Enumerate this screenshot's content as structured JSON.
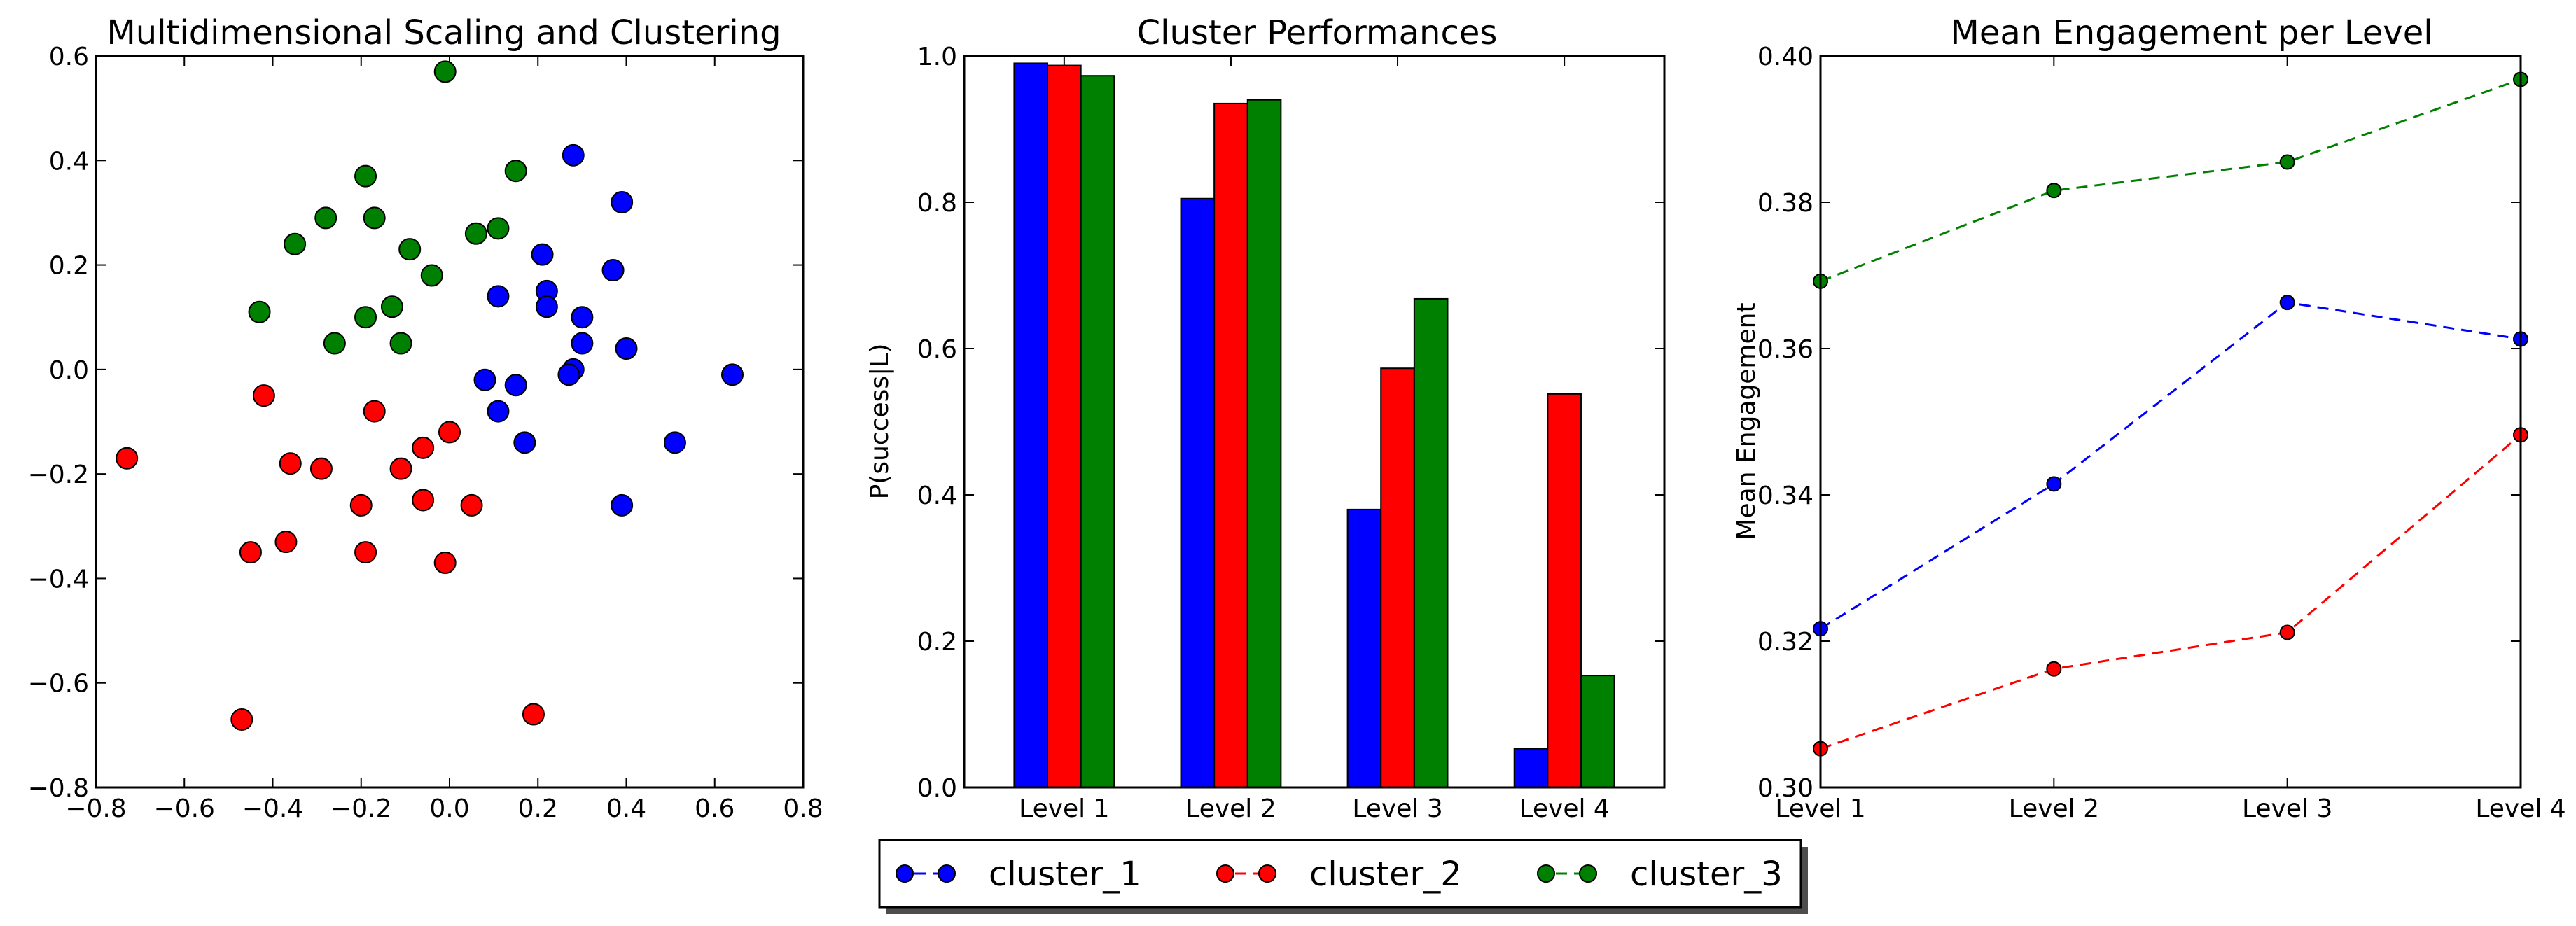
{
  "chart_data": [
    {
      "type": "scatter",
      "title": "Multidimensional Scaling and Clustering",
      "xlabel": "",
      "ylabel": "",
      "xlim": [
        -0.8,
        0.8
      ],
      "ylim": [
        -0.8,
        0.6
      ],
      "xticks": [
        -0.8,
        -0.6,
        -0.4,
        -0.2,
        0.0,
        0.2,
        0.4,
        0.6,
        0.8
      ],
      "yticks": [
        -0.8,
        -0.6,
        -0.4,
        -0.2,
        0.0,
        0.2,
        0.4,
        0.6
      ],
      "xticklabels": [
        "−0.8",
        "−0.6",
        "−0.4",
        "−0.2",
        "0.0",
        "0.2",
        "0.4",
        "0.6",
        "0.8"
      ],
      "yticklabels": [
        "−0.8",
        "−0.6",
        "−0.4",
        "−0.2",
        "0.0",
        "0.2",
        "0.4",
        "0.6"
      ],
      "series": [
        {
          "name": "cluster_1",
          "color": "#0000ff",
          "points": [
            [
              0.28,
              0.41
            ],
            [
              0.39,
              0.32
            ],
            [
              0.37,
              0.19
            ],
            [
              0.21,
              0.22
            ],
            [
              0.22,
              0.15
            ],
            [
              0.11,
              0.14
            ],
            [
              0.22,
              0.12
            ],
            [
              0.3,
              0.1
            ],
            [
              0.3,
              0.05
            ],
            [
              0.4,
              0.04
            ],
            [
              0.28,
              0.0
            ],
            [
              0.27,
              -0.01
            ],
            [
              0.64,
              -0.01
            ],
            [
              0.08,
              -0.02
            ],
            [
              0.15,
              -0.03
            ],
            [
              0.11,
              -0.08
            ],
            [
              0.17,
              -0.14
            ],
            [
              0.51,
              -0.14
            ],
            [
              0.39,
              -0.26
            ]
          ]
        },
        {
          "name": "cluster_2",
          "color": "#ff0000",
          "points": [
            [
              -0.42,
              -0.05
            ],
            [
              -0.17,
              -0.08
            ],
            [
              -0.73,
              -0.17
            ],
            [
              -0.36,
              -0.18
            ],
            [
              -0.29,
              -0.19
            ],
            [
              -0.11,
              -0.19
            ],
            [
              -0.06,
              -0.15
            ],
            [
              0.0,
              -0.12
            ],
            [
              -0.2,
              -0.26
            ],
            [
              -0.06,
              -0.25
            ],
            [
              0.05,
              -0.26
            ],
            [
              -0.37,
              -0.33
            ],
            [
              -0.45,
              -0.35
            ],
            [
              -0.19,
              -0.35
            ],
            [
              -0.01,
              -0.37
            ],
            [
              -0.47,
              -0.67
            ],
            [
              0.19,
              -0.66
            ]
          ]
        },
        {
          "name": "cluster_3",
          "color": "#008000",
          "points": [
            [
              -0.01,
              0.57
            ],
            [
              -0.19,
              0.37
            ],
            [
              0.15,
              0.38
            ],
            [
              -0.28,
              0.29
            ],
            [
              -0.17,
              0.29
            ],
            [
              0.11,
              0.27
            ],
            [
              0.06,
              0.26
            ],
            [
              -0.35,
              0.24
            ],
            [
              -0.09,
              0.23
            ],
            [
              -0.04,
              0.18
            ],
            [
              -0.13,
              0.12
            ],
            [
              -0.43,
              0.11
            ],
            [
              -0.19,
              0.1
            ],
            [
              -0.26,
              0.05
            ],
            [
              -0.11,
              0.05
            ]
          ]
        }
      ]
    },
    {
      "type": "bar",
      "title": "Cluster Performances",
      "xlabel": "",
      "ylabel": "P(success|L)",
      "ylim": [
        0.0,
        1.0
      ],
      "yticks": [
        0.0,
        0.2,
        0.4,
        0.6,
        0.8,
        1.0
      ],
      "yticklabels": [
        "0.0",
        "0.2",
        "0.4",
        "0.6",
        "0.8",
        "1.0"
      ],
      "categories": [
        "Level 1",
        "Level 2",
        "Level 3",
        "Level 4"
      ],
      "series": [
        {
          "name": "cluster_1",
          "color": "#0000ff",
          "values": [
            0.99,
            0.805,
            0.38,
            0.053
          ]
        },
        {
          "name": "cluster_2",
          "color": "#ff0000",
          "values": [
            0.987,
            0.935,
            0.573,
            0.538
          ]
        },
        {
          "name": "cluster_3",
          "color": "#008000",
          "values": [
            0.973,
            0.94,
            0.668,
            0.153
          ]
        }
      ]
    },
    {
      "type": "line",
      "title": "Mean Engagement per Level",
      "xlabel": "",
      "ylabel": "Mean Engagement",
      "ylim": [
        0.3,
        0.4
      ],
      "yticks": [
        0.3,
        0.32,
        0.34,
        0.36,
        0.38,
        0.4
      ],
      "yticklabels": [
        "0.30",
        "0.32",
        "0.34",
        "0.36",
        "0.38",
        "0.40"
      ],
      "categories": [
        "Level 1",
        "Level 2",
        "Level 3",
        "Level 4"
      ],
      "series": [
        {
          "name": "cluster_1",
          "color": "#0000ff",
          "values": [
            0.3217,
            0.3415,
            0.3663,
            0.3613
          ]
        },
        {
          "name": "cluster_2",
          "color": "#ff0000",
          "values": [
            0.3053,
            0.3162,
            0.3212,
            0.3482
          ]
        },
        {
          "name": "cluster_3",
          "color": "#008000",
          "values": [
            0.3692,
            0.3816,
            0.3855,
            0.3968
          ]
        }
      ]
    }
  ],
  "legend": {
    "placement": "bottom-center",
    "entries": [
      {
        "label": "cluster_1",
        "color": "#0000ff"
      },
      {
        "label": "cluster_2",
        "color": "#ff0000"
      },
      {
        "label": "cluster_3",
        "color": "#008000"
      }
    ]
  }
}
